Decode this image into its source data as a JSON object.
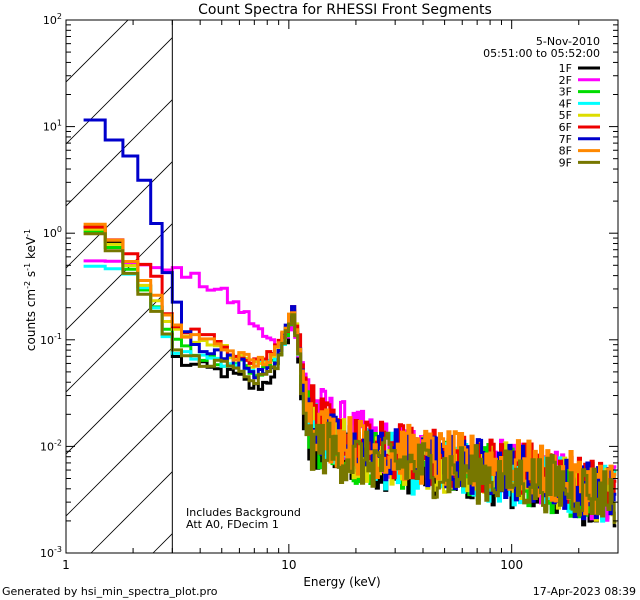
{
  "chart_data": {
    "type": "line",
    "title": "Count Spectra for RHESSI Front Segments",
    "xlabel": "Energy (keV)",
    "ylabel_parts": {
      "a": "counts cm",
      "b": "-2",
      "c": " s",
      "d": "-1",
      "e": " keV",
      "f": "-1"
    },
    "x_scale": "log",
    "y_scale": "log",
    "xlim": [
      1,
      300
    ],
    "ylim": [
      0.001,
      100
    ],
    "x_ticks": [
      {
        "v": 1,
        "label": "1"
      },
      {
        "v": 10,
        "label": "10"
      },
      {
        "v": 100,
        "label": "100"
      }
    ],
    "y_ticks": [
      {
        "v": 0.001,
        "base": "10",
        "exp": "-3"
      },
      {
        "v": 0.01,
        "base": "10",
        "exp": "-2"
      },
      {
        "v": 0.1,
        "base": "10",
        "exp": "-1"
      },
      {
        "v": 1,
        "base": "10",
        "exp": "0"
      },
      {
        "v": 10,
        "base": "10",
        "exp": "1"
      },
      {
        "v": 100,
        "base": "10",
        "exp": "2"
      }
    ],
    "attenuator_region_kev": [
      1,
      3
    ],
    "date": "5-Nov-2010",
    "time_range": "05:51:00 to 05:52:00",
    "annotations": [
      "Includes Background",
      "Att A0, FDecim 1"
    ],
    "series": [
      {
        "name": "1F",
        "color": "#000000",
        "y_points": [
          [
            1.2,
            1.3
          ],
          [
            1.5,
            1.0
          ],
          [
            1.8,
            0.7
          ],
          [
            2.1,
            0.4
          ],
          [
            2.5,
            0.22
          ],
          [
            2.8,
            0.13
          ],
          [
            3.0,
            0.07
          ],
          [
            3.5,
            0.06
          ],
          [
            4,
            0.055
          ],
          [
            5,
            0.05
          ],
          [
            6,
            0.045
          ],
          [
            7,
            0.035
          ],
          [
            8,
            0.04
          ],
          [
            9,
            0.06
          ],
          [
            10,
            0.12
          ],
          [
            10.5,
            0.18
          ],
          [
            11,
            0.09
          ],
          [
            12,
            0.008
          ],
          [
            14,
            0.01
          ],
          [
            20,
            0.008
          ],
          [
            30,
            0.007
          ],
          [
            50,
            0.006
          ],
          [
            100,
            0.005
          ],
          [
            150,
            0.004
          ],
          [
            200,
            0.0035
          ],
          [
            280,
            0.003
          ]
        ]
      },
      {
        "name": "2F",
        "color": "#ff00ff",
        "y_points": [
          [
            1.2,
            0.55
          ],
          [
            1.5,
            0.55
          ],
          [
            1.8,
            0.54
          ],
          [
            2.1,
            0.52
          ],
          [
            2.5,
            0.48
          ],
          [
            3.0,
            0.44
          ],
          [
            3.5,
            0.4
          ],
          [
            4,
            0.35
          ],
          [
            5,
            0.28
          ],
          [
            6,
            0.2
          ],
          [
            7,
            0.14
          ],
          [
            8,
            0.1
          ],
          [
            9,
            0.09
          ],
          [
            10,
            0.13
          ],
          [
            10.5,
            0.16
          ],
          [
            11,
            0.08
          ],
          [
            12,
            0.04
          ],
          [
            14,
            0.02
          ],
          [
            20,
            0.012
          ],
          [
            30,
            0.009
          ],
          [
            50,
            0.007
          ],
          [
            100,
            0.006
          ],
          [
            150,
            0.005
          ],
          [
            200,
            0.004
          ],
          [
            280,
            0.0035
          ]
        ]
      },
      {
        "name": "3F",
        "color": "#00dd00",
        "y_points": [
          [
            1.2,
            1.2
          ],
          [
            1.5,
            0.9
          ],
          [
            1.8,
            0.6
          ],
          [
            2.1,
            0.35
          ],
          [
            2.5,
            0.22
          ],
          [
            3.0,
            0.1
          ],
          [
            3.5,
            0.08
          ],
          [
            4,
            0.07
          ],
          [
            5,
            0.065
          ],
          [
            6,
            0.06
          ],
          [
            7,
            0.05
          ],
          [
            8,
            0.055
          ],
          [
            9,
            0.07
          ],
          [
            10,
            0.14
          ],
          [
            10.5,
            0.19
          ],
          [
            11,
            0.09
          ],
          [
            12,
            0.02
          ],
          [
            14,
            0.011
          ],
          [
            20,
            0.008
          ],
          [
            30,
            0.0075
          ],
          [
            50,
            0.0065
          ],
          [
            100,
            0.0055
          ],
          [
            150,
            0.0045
          ],
          [
            200,
            0.004
          ],
          [
            280,
            0.0035
          ]
        ]
      },
      {
        "name": "4F",
        "color": "#00ffff",
        "y_points": [
          [
            1.2,
            0.5
          ],
          [
            1.5,
            0.48
          ],
          [
            1.8,
            0.45
          ],
          [
            2.1,
            0.38
          ],
          [
            2.5,
            0.22
          ],
          [
            3.0,
            0.08
          ],
          [
            3.5,
            0.075
          ],
          [
            4,
            0.07
          ],
          [
            5,
            0.065
          ],
          [
            6,
            0.06
          ],
          [
            7,
            0.055
          ],
          [
            8,
            0.06
          ],
          [
            9,
            0.075
          ],
          [
            10,
            0.14
          ],
          [
            10.5,
            0.18
          ],
          [
            11,
            0.09
          ],
          [
            12,
            0.02
          ],
          [
            14,
            0.012
          ],
          [
            20,
            0.009
          ],
          [
            30,
            0.007
          ],
          [
            50,
            0.006
          ],
          [
            100,
            0.005
          ],
          [
            150,
            0.0045
          ],
          [
            200,
            0.004
          ],
          [
            280,
            0.0035
          ]
        ]
      },
      {
        "name": "5F",
        "color": "#dddd00",
        "y_points": [
          [
            1.2,
            1.25
          ],
          [
            1.5,
            0.95
          ],
          [
            1.8,
            0.65
          ],
          [
            2.1,
            0.38
          ],
          [
            2.5,
            0.25
          ],
          [
            3.0,
            0.12
          ],
          [
            3.5,
            0.1
          ],
          [
            4,
            0.09
          ],
          [
            5,
            0.08
          ],
          [
            6,
            0.075
          ],
          [
            7,
            0.06
          ],
          [
            8,
            0.07
          ],
          [
            9,
            0.08
          ],
          [
            10,
            0.15
          ],
          [
            10.5,
            0.2
          ],
          [
            11,
            0.1
          ],
          [
            12,
            0.025
          ],
          [
            14,
            0.013
          ],
          [
            20,
            0.009
          ],
          [
            30,
            0.008
          ],
          [
            50,
            0.007
          ],
          [
            100,
            0.006
          ],
          [
            150,
            0.005
          ],
          [
            200,
            0.004
          ],
          [
            280,
            0.0035
          ]
        ]
      },
      {
        "name": "6F",
        "color": "#ee0000",
        "y_points": [
          [
            1.2,
            1.3
          ],
          [
            1.5,
            1.0
          ],
          [
            1.8,
            0.75
          ],
          [
            2.1,
            0.55
          ],
          [
            2.5,
            0.45
          ],
          [
            3.0,
            0.12
          ],
          [
            3.5,
            0.13
          ],
          [
            4,
            0.11
          ],
          [
            5,
            0.09
          ],
          [
            6,
            0.075
          ],
          [
            7,
            0.065
          ],
          [
            8,
            0.07
          ],
          [
            9,
            0.09
          ],
          [
            10,
            0.15
          ],
          [
            10.5,
            0.21
          ],
          [
            11,
            0.12
          ],
          [
            12,
            0.03
          ],
          [
            14,
            0.015
          ],
          [
            20,
            0.01
          ],
          [
            30,
            0.009
          ],
          [
            50,
            0.0075
          ],
          [
            100,
            0.0065
          ],
          [
            150,
            0.0055
          ],
          [
            200,
            0.0045
          ],
          [
            280,
            0.004
          ]
        ]
      },
      {
        "name": "7F",
        "color": "#0000cc",
        "y_points": [
          [
            1.2,
            12
          ],
          [
            1.35,
            11.5
          ],
          [
            1.5,
            9.0
          ],
          [
            1.7,
            7.0
          ],
          [
            2.0,
            5.0
          ],
          [
            2.2,
            3.6
          ],
          [
            2.5,
            1.5
          ],
          [
            2.7,
            0.65
          ],
          [
            3.0,
            0.28
          ],
          [
            3.5,
            0.12
          ],
          [
            4,
            0.09
          ],
          [
            5,
            0.07
          ],
          [
            6,
            0.06
          ],
          [
            7,
            0.05
          ],
          [
            8,
            0.055
          ],
          [
            9,
            0.07
          ],
          [
            10,
            0.15
          ],
          [
            10.5,
            0.2
          ],
          [
            11,
            0.1
          ],
          [
            12,
            0.02
          ],
          [
            14,
            0.012
          ],
          [
            20,
            0.009
          ],
          [
            30,
            0.008
          ],
          [
            50,
            0.007
          ],
          [
            100,
            0.006
          ],
          [
            150,
            0.005
          ],
          [
            200,
            0.004
          ],
          [
            280,
            0.0035
          ]
        ]
      },
      {
        "name": "8F",
        "color": "#ff8800",
        "y_points": [
          [
            1.2,
            1.4
          ],
          [
            1.5,
            1.05
          ],
          [
            1.8,
            0.7
          ],
          [
            2.1,
            0.42
          ],
          [
            2.5,
            0.28
          ],
          [
            3.0,
            0.14
          ],
          [
            3.5,
            0.11
          ],
          [
            4,
            0.1
          ],
          [
            5,
            0.09
          ],
          [
            6,
            0.07
          ],
          [
            7,
            0.06
          ],
          [
            8,
            0.065
          ],
          [
            9,
            0.08
          ],
          [
            10,
            0.15
          ],
          [
            10.5,
            0.2
          ],
          [
            11,
            0.11
          ],
          [
            12,
            0.028
          ],
          [
            14,
            0.014
          ],
          [
            20,
            0.01
          ],
          [
            30,
            0.009
          ],
          [
            50,
            0.0075
          ],
          [
            100,
            0.0065
          ],
          [
            150,
            0.0055
          ],
          [
            200,
            0.0045
          ],
          [
            280,
            0.004
          ]
        ]
      },
      {
        "name": "9F",
        "color": "#777700",
        "y_points": [
          [
            1.2,
            1.15
          ],
          [
            1.5,
            0.85
          ],
          [
            1.8,
            0.55
          ],
          [
            2.1,
            0.32
          ],
          [
            2.5,
            0.2
          ],
          [
            3.0,
            0.09
          ],
          [
            3.5,
            0.07
          ],
          [
            4,
            0.065
          ],
          [
            5,
            0.06
          ],
          [
            6,
            0.05
          ],
          [
            7,
            0.04
          ],
          [
            8,
            0.045
          ],
          [
            9,
            0.06
          ],
          [
            10,
            0.13
          ],
          [
            10.5,
            0.19
          ],
          [
            11,
            0.085
          ],
          [
            12,
            0.012
          ],
          [
            14,
            0.01
          ],
          [
            20,
            0.0075
          ],
          [
            30,
            0.007
          ],
          [
            50,
            0.006
          ],
          [
            100,
            0.005
          ],
          [
            150,
            0.0045
          ],
          [
            200,
            0.004
          ],
          [
            280,
            0.0035
          ]
        ]
      }
    ]
  },
  "footer": {
    "generated_by": "Generated by hsi_min_spectra_plot.pro",
    "date_stamp": "17-Apr-2023 08:39"
  }
}
